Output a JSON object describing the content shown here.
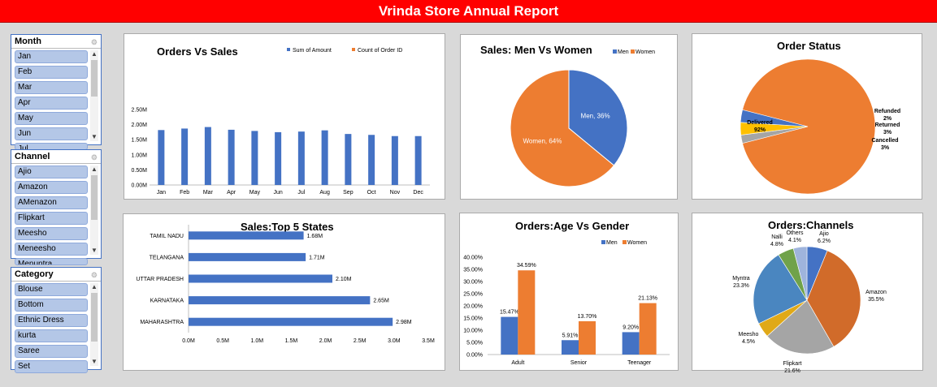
{
  "banner": {
    "title": "Vrinda Store Annual Report"
  },
  "slicers": [
    {
      "title": "Month",
      "items": [
        "Jan",
        "Feb",
        "Mar",
        "Apr",
        "May",
        "Jun",
        "Jul"
      ]
    },
    {
      "title": "Channel",
      "items": [
        "Ajio",
        "Amazon",
        "AMenazon",
        "Flipkart",
        "Meesho",
        "Meneesho",
        "Menuntra"
      ]
    },
    {
      "title": "Category",
      "items": [
        "Blouse",
        "Bottom",
        "Ethnic Dress",
        "kurta",
        "Saree",
        "Set"
      ]
    }
  ],
  "chart_data": [
    {
      "type": "bar",
      "title": "Orders Vs Sales",
      "legend": [
        "Sum of Amount",
        "Count of Order ID"
      ],
      "legend_colors": [
        "#4472c4",
        "#ed7d31"
      ],
      "legend_position": "top-right",
      "categories": [
        "Jan",
        "Feb",
        "Mar",
        "Apr",
        "May",
        "Jun",
        "Jul",
        "Aug",
        "Sep",
        "Oct",
        "Nov",
        "Dec"
      ],
      "series": [
        {
          "name": "Sum of Amount",
          "values": [
            1.82,
            1.87,
            1.92,
            1.83,
            1.79,
            1.75,
            1.77,
            1.81,
            1.69,
            1.66,
            1.62,
            1.62
          ]
        }
      ],
      "ylim": [
        0,
        2.5
      ],
      "yticks": [
        "0.00M",
        "0.50M",
        "1.00M",
        "1.50M",
        "2.00M",
        "2.50M"
      ],
      "grid": false
    },
    {
      "type": "pie",
      "title": "Sales: Men Vs Women",
      "legend": [
        "Men",
        "Women"
      ],
      "legend_position": "top-right",
      "labels": [
        "Men",
        "Women"
      ],
      "values": [
        36,
        64
      ],
      "value_labels": [
        "Men, 36%",
        "Women, 64%"
      ],
      "colors": [
        "#4472c4",
        "#ed7d31"
      ]
    },
    {
      "type": "pie",
      "title": "Order Status",
      "labels": [
        "Delivered",
        "Refunded",
        "Returned",
        "Cancelled"
      ],
      "values": [
        92,
        2,
        3,
        3
      ],
      "value_labels": [
        "92%",
        "2%",
        "3%",
        "3%"
      ],
      "colors": [
        "#ed7d31",
        "#a5a5a5",
        "#ffc000",
        "#4472c4"
      ]
    },
    {
      "type": "bar",
      "orientation": "horizontal",
      "title": "Sales:Top 5 States",
      "categories": [
        "TAMIL NADU",
        "TELANGANA",
        "UTTAR PRADESH",
        "KARNATAKA",
        "MAHARASHTRA"
      ],
      "values": [
        1.68,
        1.71,
        2.1,
        2.65,
        2.98
      ],
      "value_labels": [
        "1.68M",
        "1.71M",
        "2.10M",
        "2.65M",
        "2.98M"
      ],
      "xlim": [
        0,
        3.5
      ],
      "xticks": [
        "0.0M",
        "0.5M",
        "1.0M",
        "1.5M",
        "2.0M",
        "2.5M",
        "3.0M",
        "3.5M"
      ]
    },
    {
      "type": "bar",
      "title": "Orders:Age Vs Gender",
      "legend": [
        "Men",
        "Women"
      ],
      "legend_position": "top-right",
      "categories": [
        "Adult",
        "Senior",
        "Teenager"
      ],
      "series": [
        {
          "name": "Men",
          "values": [
            15.47,
            5.91,
            9.2
          ],
          "labels": [
            "15.47%",
            "5.91%",
            "9.20%"
          ]
        },
        {
          "name": "Women",
          "values": [
            34.59,
            13.7,
            21.13
          ],
          "labels": [
            "34.59%",
            "13.70%",
            "21.13%"
          ]
        }
      ],
      "ylim": [
        0,
        40
      ],
      "yticks": [
        "0.00%",
        "5.00%",
        "10.00%",
        "15.00%",
        "20.00%",
        "25.00%",
        "30.00%",
        "35.00%",
        "40.00%"
      ]
    },
    {
      "type": "pie",
      "title": "Orders:Channels",
      "labels": [
        "Ajio",
        "Amazon",
        "Flipkart",
        "Meesho",
        "Myntra",
        "Nalli",
        "Others"
      ],
      "values": [
        6.2,
        35.5,
        21.6,
        4.5,
        23.3,
        4.8,
        4.1
      ],
      "value_labels": [
        "6.2%",
        "35.5%",
        "21.6%",
        "4.5%",
        "23.3%",
        "4.8%",
        "4.1%"
      ],
      "colors": [
        "#4472c4",
        "#d16b2a",
        "#a5a5a5",
        "#e0a918",
        "#4a86c0",
        "#70a24a",
        "#9fb4dc"
      ]
    }
  ]
}
